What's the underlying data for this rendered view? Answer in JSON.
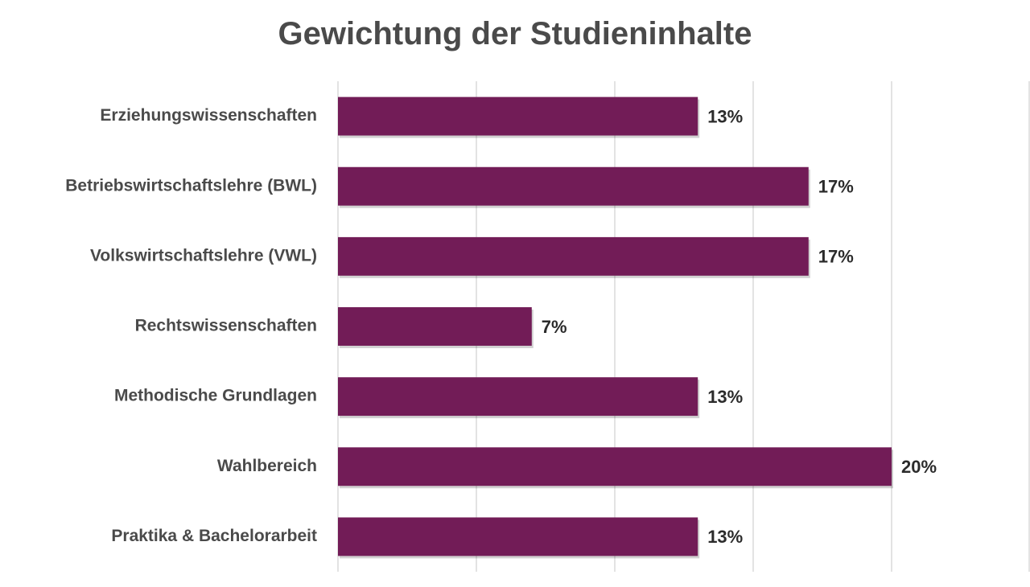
{
  "chart_data": {
    "type": "bar",
    "orientation": "horizontal",
    "title": "Gewichtung der Studieninhalte",
    "categories": [
      "Erziehungswissenschaften",
      "Betriebswirtschaftslehre (BWL)",
      "Volkswirtschaftslehre (VWL)",
      "Rechtswissenschaften",
      "Methodische Grundlagen",
      "Wahlbereich",
      "Praktika & Bachelorarbeit"
    ],
    "values": [
      13,
      17,
      17,
      7,
      13,
      20,
      13
    ],
    "data_labels": [
      "13%",
      "17%",
      "17%",
      "7%",
      "13%",
      "20%",
      "13%"
    ],
    "value_unit": "%",
    "xlim": [
      0,
      25
    ],
    "x_gridlines": [
      0,
      5,
      10,
      15,
      20,
      25
    ],
    "grid": true,
    "legend": "none",
    "bar_color": "#721c57"
  }
}
